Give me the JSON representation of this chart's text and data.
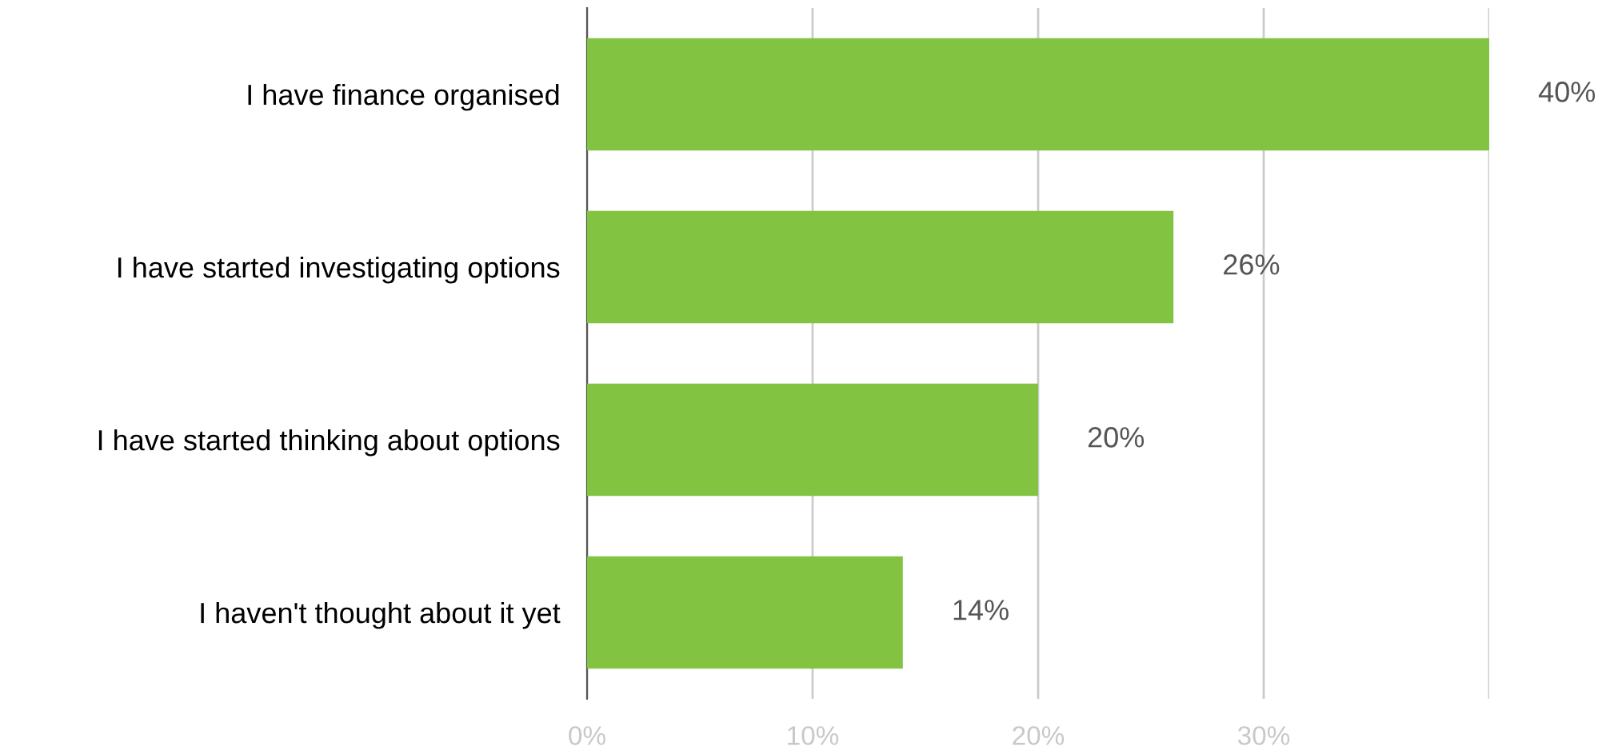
{
  "chart_data": {
    "type": "bar",
    "orientation": "horizontal",
    "categories": [
      "I have finance organised",
      "I have started investigating options",
      "I have started thinking about options",
      "I haven't thought about it yet"
    ],
    "values": [
      40,
      26,
      20,
      14
    ],
    "color": "#82c341",
    "value_labels": [
      "40%",
      "26%",
      "20%",
      "14%"
    ],
    "xlim": [
      0,
      40
    ],
    "xticks": [
      {
        "value": 0,
        "label": "0%"
      },
      {
        "value": 10,
        "label": "10%"
      },
      {
        "value": 20,
        "label": "20%"
      },
      {
        "value": 30,
        "label": "30%"
      },
      {
        "value": 40,
        "label": null
      }
    ],
    "grid": "x",
    "legend": false
  }
}
